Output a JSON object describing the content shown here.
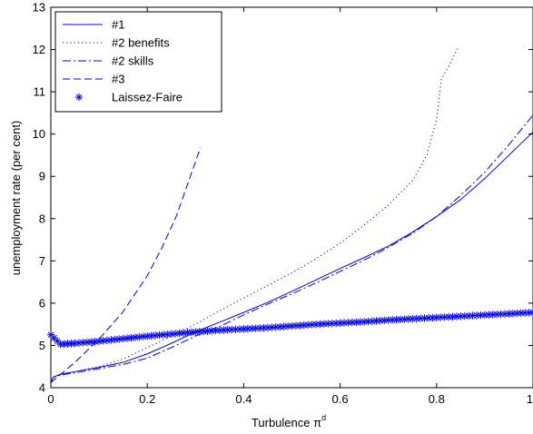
{
  "chart_data": {
    "type": "line",
    "xlabel": "Turbulence π",
    "xlabel_superscript": "d",
    "ylabel": "unemployment rate (per cent)",
    "xlim": [
      0,
      1
    ],
    "ylim": [
      4,
      13
    ],
    "xticks": [
      {
        "value": 0,
        "label": "0"
      },
      {
        "value": 0.2,
        "label": "0.2"
      },
      {
        "value": 0.4,
        "label": "0.4"
      },
      {
        "value": 0.6,
        "label": "0.6"
      },
      {
        "value": 0.8,
        "label": "0.8"
      },
      {
        "value": 1,
        "label": "1"
      }
    ],
    "yticks": [
      {
        "value": 4,
        "label": "4"
      },
      {
        "value": 5,
        "label": "5"
      },
      {
        "value": 6,
        "label": "6"
      },
      {
        "value": 7,
        "label": "7"
      },
      {
        "value": 8,
        "label": "8"
      },
      {
        "value": 9,
        "label": "9"
      },
      {
        "value": 10,
        "label": "10"
      },
      {
        "value": 11,
        "label": "11"
      },
      {
        "value": 12,
        "label": "12"
      },
      {
        "value": 13,
        "label": "13"
      }
    ],
    "grid": false,
    "legend_position": "top-left",
    "color": "#0000ff",
    "series": [
      {
        "name": "#1",
        "style": "solid",
        "x": [
          0,
          0.005,
          0.02,
          0.05,
          0.1,
          0.15,
          0.2,
          0.25,
          0.3,
          0.35,
          0.4,
          0.45,
          0.5,
          0.55,
          0.6,
          0.65,
          0.7,
          0.75,
          0.8,
          0.85,
          0.9,
          0.95,
          1.0
        ],
        "y": [
          4.12,
          4.25,
          4.32,
          4.38,
          4.48,
          4.6,
          4.8,
          5.05,
          5.32,
          5.55,
          5.78,
          6.02,
          6.28,
          6.55,
          6.82,
          7.08,
          7.35,
          7.68,
          8.05,
          8.45,
          8.95,
          9.5,
          10.05
        ]
      },
      {
        "name": "#2 benefits",
        "style": "dotted",
        "x": [
          0,
          0.005,
          0.02,
          0.05,
          0.1,
          0.15,
          0.2,
          0.25,
          0.3,
          0.35,
          0.4,
          0.45,
          0.5,
          0.55,
          0.6,
          0.65,
          0.7,
          0.75,
          0.78,
          0.8,
          0.81,
          0.825,
          0.845
        ],
        "y": [
          4.12,
          4.25,
          4.32,
          4.38,
          4.5,
          4.68,
          4.95,
          5.22,
          5.5,
          5.82,
          6.12,
          6.42,
          6.72,
          7.05,
          7.42,
          7.85,
          8.32,
          8.9,
          9.5,
          10.35,
          11.3,
          11.6,
          12.05
        ]
      },
      {
        "name": "#2 skills",
        "style": "dashdot",
        "x": [
          0,
          0.005,
          0.02,
          0.05,
          0.1,
          0.15,
          0.2,
          0.25,
          0.3,
          0.35,
          0.4,
          0.45,
          0.5,
          0.55,
          0.6,
          0.65,
          0.7,
          0.75,
          0.8,
          0.85,
          0.9,
          0.95,
          1.0
        ],
        "y": [
          4.12,
          4.25,
          4.3,
          4.35,
          4.45,
          4.55,
          4.7,
          4.95,
          5.22,
          5.45,
          5.72,
          5.98,
          6.22,
          6.48,
          6.75,
          7.02,
          7.32,
          7.65,
          8.05,
          8.55,
          9.1,
          9.75,
          10.45
        ]
      },
      {
        "name": "#3",
        "style": "dashed",
        "x": [
          0,
          0.05,
          0.1,
          0.15,
          0.2,
          0.23,
          0.26,
          0.28,
          0.3,
          0.31
        ],
        "y": [
          4.12,
          4.6,
          5.15,
          5.8,
          6.65,
          7.3,
          8.05,
          8.7,
          9.35,
          9.68
        ]
      },
      {
        "name": "Laissez-Faire",
        "style": "marker",
        "x": [
          0,
          0.02,
          0.05,
          0.1,
          0.15,
          0.2,
          0.25,
          0.3,
          0.35,
          0.4,
          0.45,
          0.5,
          0.55,
          0.6,
          0.65,
          0.7,
          0.75,
          0.8,
          0.85,
          0.9,
          0.95,
          1.0
        ],
        "y": [
          5.25,
          5.03,
          5.05,
          5.1,
          5.16,
          5.22,
          5.27,
          5.32,
          5.36,
          5.39,
          5.42,
          5.46,
          5.5,
          5.53,
          5.56,
          5.6,
          5.63,
          5.66,
          5.69,
          5.72,
          5.75,
          5.78
        ]
      }
    ]
  }
}
